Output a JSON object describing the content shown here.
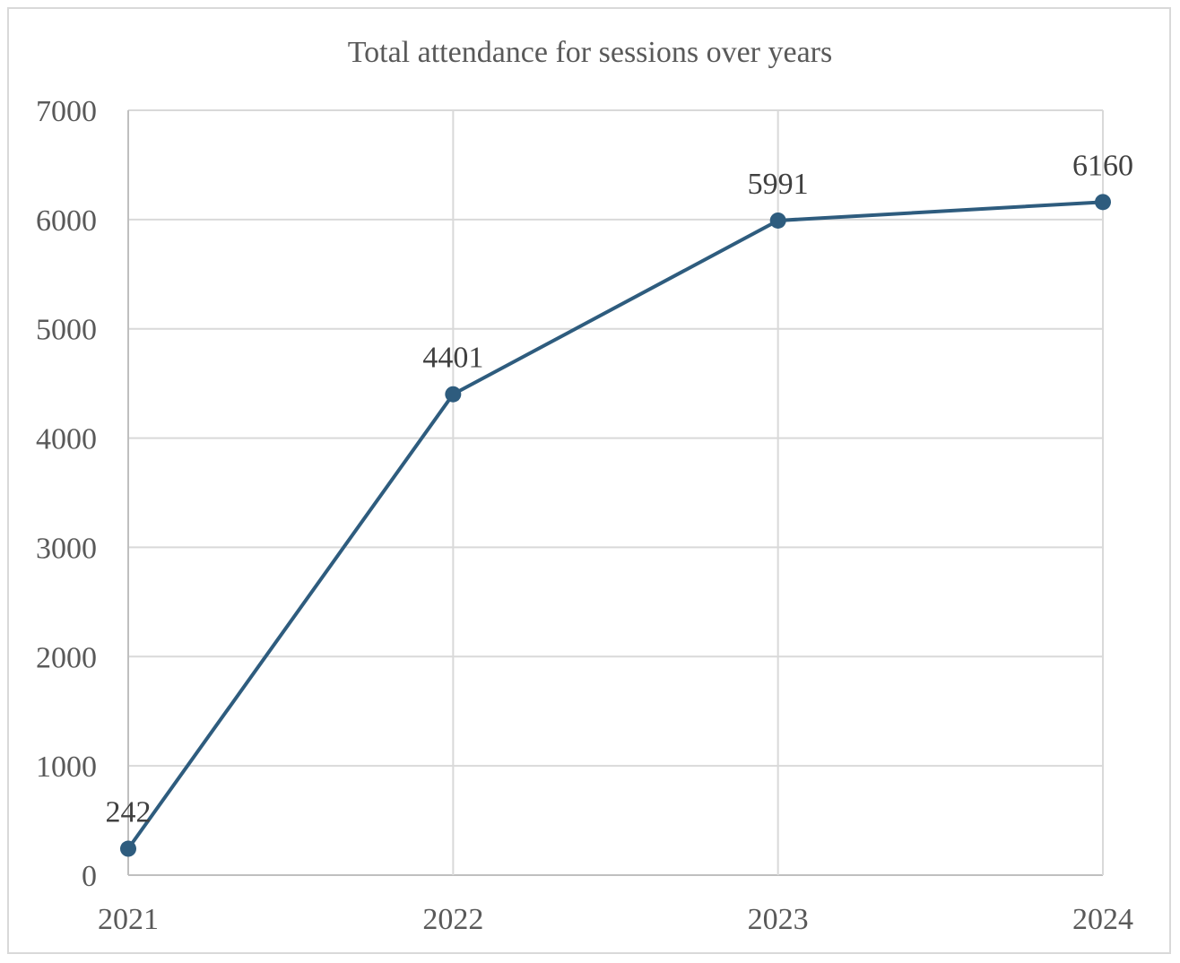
{
  "chart_data": {
    "type": "line",
    "title": "Total attendance for sessions over years",
    "xlabel": "",
    "ylabel": "",
    "categories": [
      "2021",
      "2022",
      "2023",
      "2024"
    ],
    "values": [
      242,
      4401,
      5991,
      6160
    ],
    "data_labels": [
      "242",
      "4401",
      "5991",
      "6160"
    ],
    "ylim": [
      0,
      7000
    ],
    "yticks": [
      0,
      1000,
      2000,
      3000,
      4000,
      5000,
      6000,
      7000
    ],
    "grid": true,
    "legend": "none",
    "colors": {
      "line": "#2E5C7E",
      "grid": "#d9d9d9",
      "axis": "#bfbfbf",
      "text": "#595959",
      "label": "#404040"
    }
  }
}
